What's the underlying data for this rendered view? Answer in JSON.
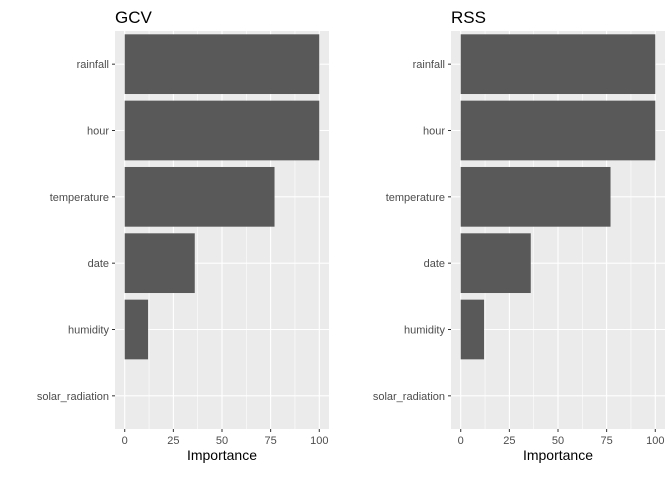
{
  "chart_data": [
    {
      "type": "bar",
      "orientation": "horizontal",
      "title": "GCV",
      "xlabel": "Importance",
      "ylabel": "",
      "categories": [
        "rainfall",
        "hour",
        "temperature",
        "date",
        "humidity",
        "solar_radiation"
      ],
      "values": [
        100,
        100,
        77,
        36,
        12,
        0
      ],
      "xlim": [
        0,
        100
      ],
      "xticks": [
        0,
        25,
        50,
        75,
        100
      ],
      "grid": true,
      "bar_color": "#595959",
      "panel_background": "#ebebeb"
    },
    {
      "type": "bar",
      "orientation": "horizontal",
      "title": "RSS",
      "xlabel": "Importance",
      "ylabel": "",
      "categories": [
        "rainfall",
        "hour",
        "temperature",
        "date",
        "humidity",
        "solar_radiation"
      ],
      "values": [
        100,
        100,
        77,
        36,
        12,
        0
      ],
      "xlim": [
        0,
        100
      ],
      "xticks": [
        0,
        25,
        50,
        75,
        100
      ],
      "grid": true,
      "bar_color": "#595959",
      "panel_background": "#ebebeb"
    }
  ]
}
